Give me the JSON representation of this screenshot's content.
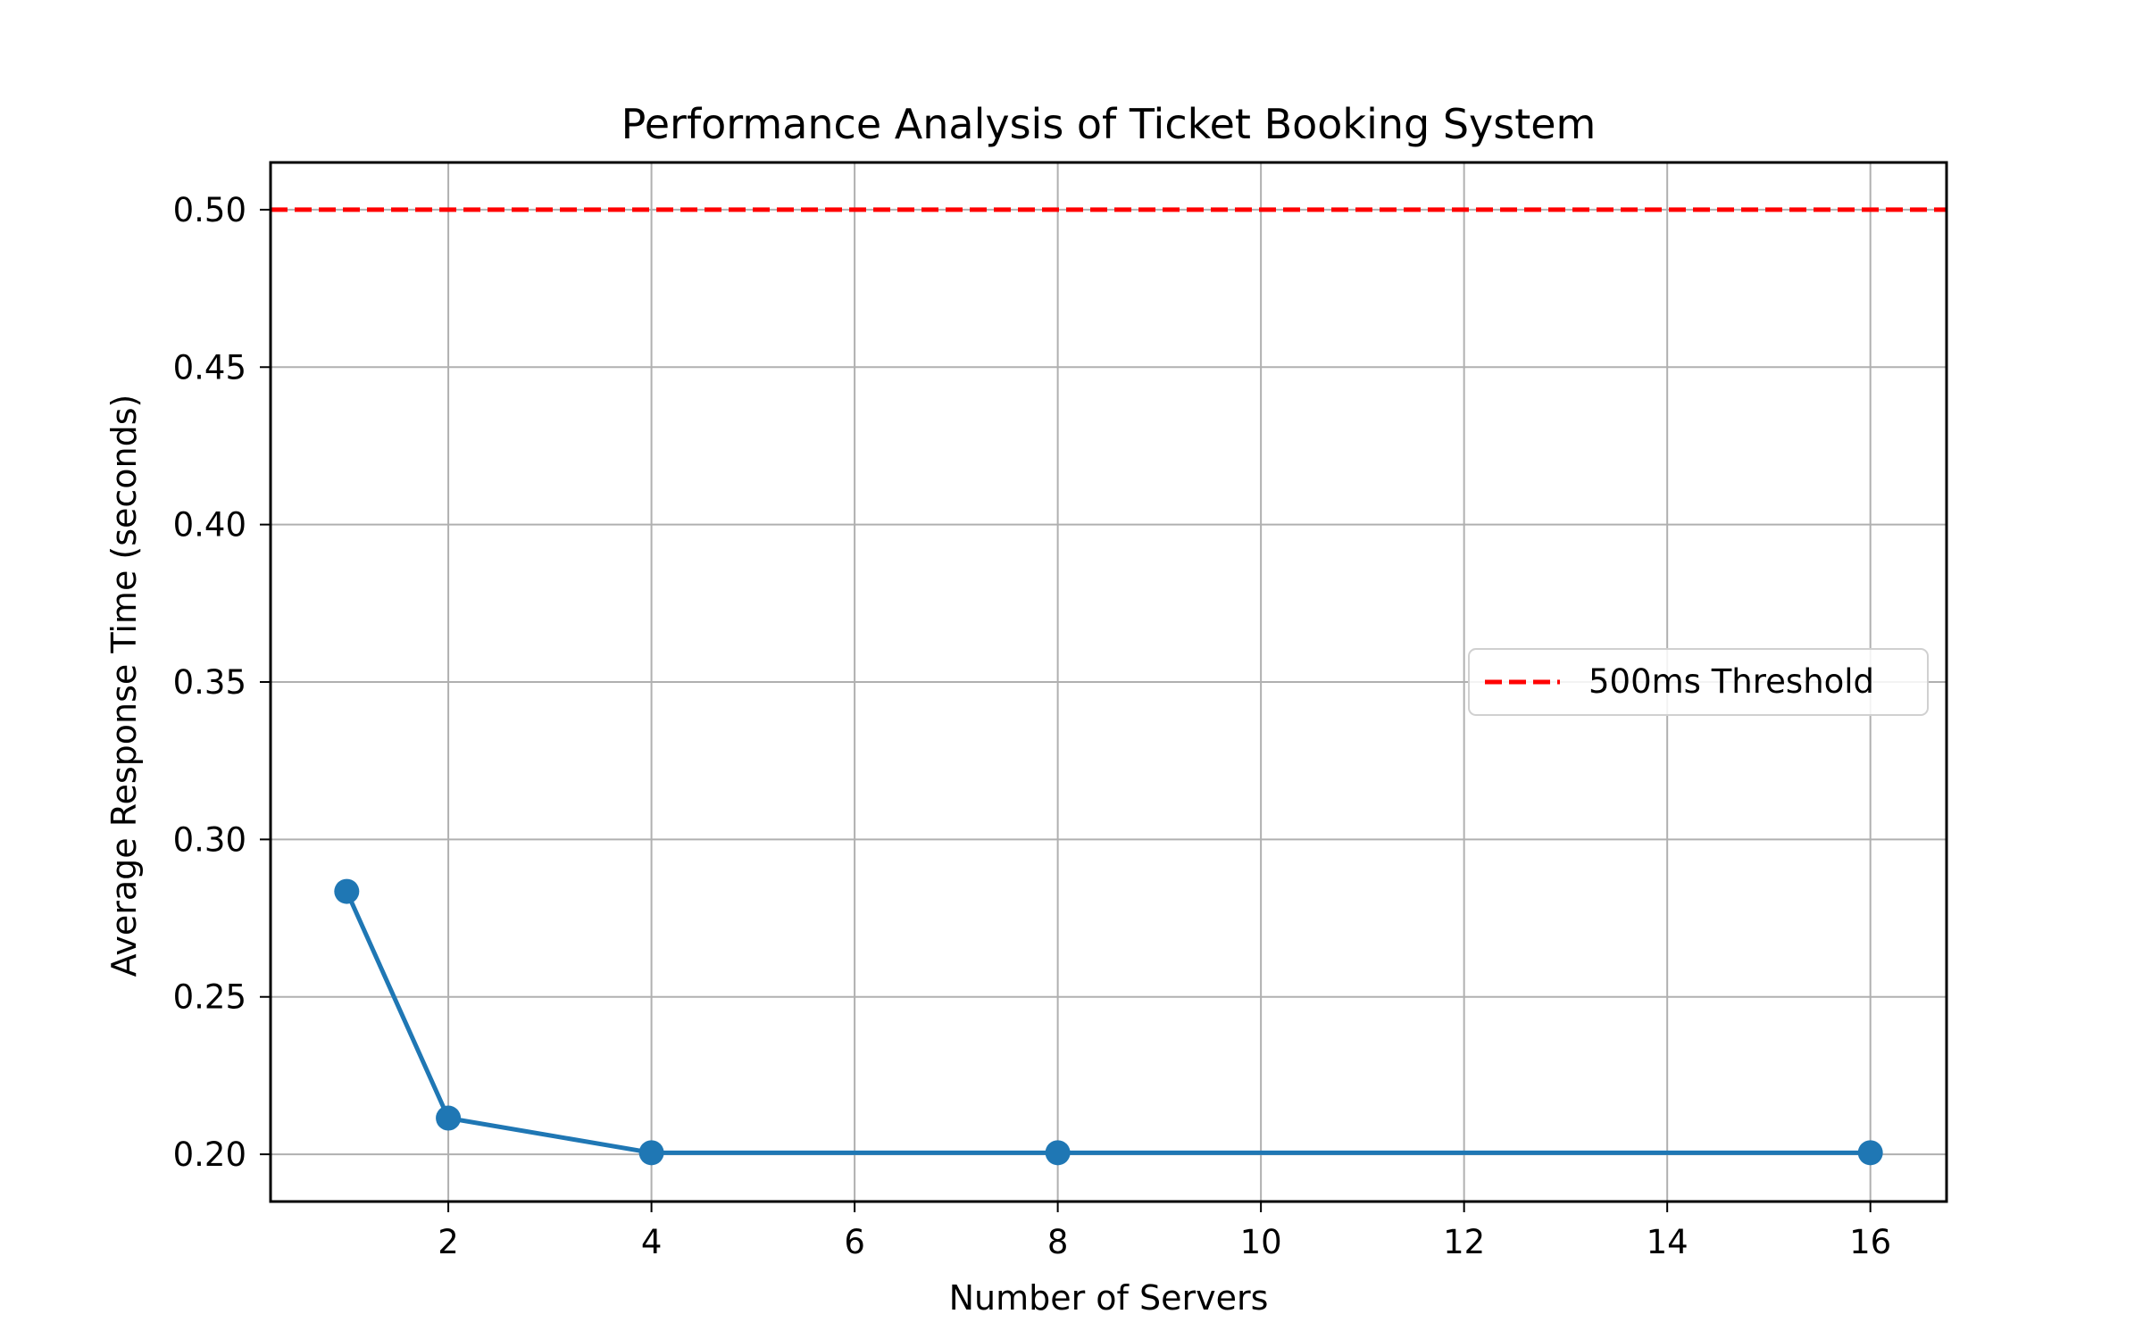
{
  "chart_data": {
    "type": "line",
    "title": "Performance Analysis of Ticket Booking System",
    "xlabel": "Number of Servers",
    "ylabel": "Average Response Time (seconds)",
    "xlim": [
      0.25,
      16.75
    ],
    "ylim": [
      0.185,
      0.515
    ],
    "xticks": [
      2,
      4,
      6,
      8,
      10,
      12,
      14,
      16
    ],
    "yticks": [
      0.2,
      0.25,
      0.3,
      0.35,
      0.4,
      0.45,
      0.5
    ],
    "xtick_labels": [
      "2",
      "4",
      "6",
      "8",
      "10",
      "12",
      "14",
      "16"
    ],
    "ytick_labels": [
      "0.20",
      "0.25",
      "0.30",
      "0.35",
      "0.40",
      "0.45",
      "0.50"
    ],
    "grid": true,
    "legend_position": "center-right",
    "series": [
      {
        "x": [
          1,
          2,
          4,
          8,
          16
        ],
        "values": [
          0.2835,
          0.2115,
          0.2005,
          0.2005,
          0.2005
        ],
        "color": "#1f77b4",
        "marker": "circle",
        "line_style": "solid"
      }
    ],
    "reference_lines": [
      {
        "name": "500ms Threshold",
        "y": 0.5,
        "color": "#ff0000",
        "line_style": "dashed"
      }
    ]
  }
}
